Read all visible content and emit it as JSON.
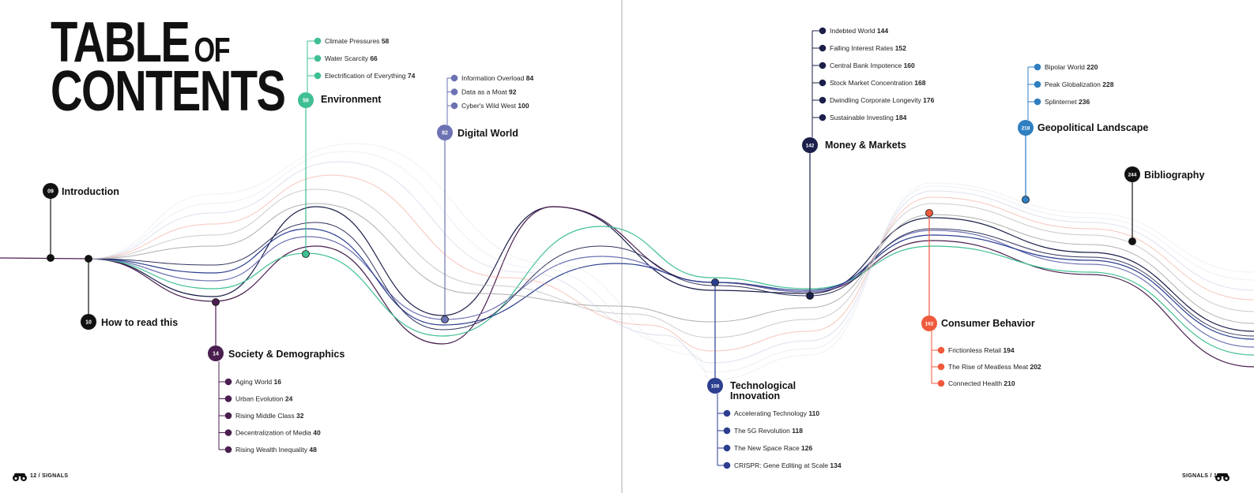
{
  "title": {
    "line1_big": "TABLE",
    "line1_small": "OF",
    "line2": "CONTENTS"
  },
  "colors": {
    "ink": "#111111",
    "society": "#4a1f4f",
    "environment": "#3fbf93",
    "digital": "#6d72b3",
    "technology": "#2b3e8f",
    "money": "#1b1f4a",
    "consumer": "#ef5a3c",
    "geopolitical": "#2f7fc1",
    "bibliography": "#111111",
    "gutter": "#d6d6d6"
  },
  "sections": [
    {
      "id": "intro",
      "number": "09",
      "label": "Introduction",
      "color": "#111111"
    },
    {
      "id": "read",
      "number": "10",
      "label": "How to read this",
      "color": "#111111"
    },
    {
      "id": "society",
      "number": "14",
      "label": "Society & Demographics",
      "color": "#4a1f4f",
      "items": [
        {
          "label": "Aging World",
          "page": "16"
        },
        {
          "label": "Urban Evolution",
          "page": "24"
        },
        {
          "label": "Rising Middle Class",
          "page": "32"
        },
        {
          "label": "Decentralization of Media",
          "page": "40"
        },
        {
          "label": "Rising Wealth Inequality",
          "page": "48"
        }
      ]
    },
    {
      "id": "environment",
      "number": "56",
      "label": "Environment",
      "color": "#3fbf93",
      "items": [
        {
          "label": "Climate Pressures",
          "page": "58"
        },
        {
          "label": "Water Scarcity",
          "page": "66"
        },
        {
          "label": "Electrification of Everything",
          "page": "74"
        }
      ]
    },
    {
      "id": "digital",
      "number": "82",
      "label": "Digital World",
      "color": "#6d72b3",
      "items": [
        {
          "label": "Information Overload",
          "page": "84"
        },
        {
          "label": "Data as a Moat",
          "page": "92"
        },
        {
          "label": "Cyber's Wild West",
          "page": "100"
        }
      ]
    },
    {
      "id": "technology",
      "number": "108",
      "label_line1": "Technological",
      "label_line2": "Innovation",
      "color": "#2b3e8f",
      "items": [
        {
          "label": "Accelerating Technology",
          "page": "110"
        },
        {
          "label": "The 5G Revolution",
          "page": "118"
        },
        {
          "label": "The New Space Race",
          "page": "126"
        },
        {
          "label": "CRISPR: Gene Editing at Scale",
          "page": "134"
        }
      ]
    },
    {
      "id": "money",
      "number": "142",
      "label": "Money & Markets",
      "color": "#1b1f4a",
      "items": [
        {
          "label": "Indebted World",
          "page": "144"
        },
        {
          "label": "Falling Interest Rates",
          "page": "152"
        },
        {
          "label": "Central Bank Impotence",
          "page": "160"
        },
        {
          "label": "Stock Market Concentration",
          "page": "168"
        },
        {
          "label": "Dwindling Corporate Longevity",
          "page": "176"
        },
        {
          "label": "Sustainable Investing",
          "page": "184"
        }
      ]
    },
    {
      "id": "consumer",
      "number": "192",
      "label": "Consumer Behavior",
      "color": "#ef5a3c",
      "items": [
        {
          "label": "Frictionless Retail",
          "page": "194"
        },
        {
          "label": "The Rise of Meatless Meat",
          "page": "202"
        },
        {
          "label": "Connected Health",
          "page": "210"
        }
      ]
    },
    {
      "id": "geopolitical",
      "number": "218",
      "label": "Geopolitical Landscape",
      "color": "#2f7fc1",
      "items": [
        {
          "label": "Bipolar World",
          "page": "220"
        },
        {
          "label": "Peak Globalization",
          "page": "228"
        },
        {
          "label": "Splinternet",
          "page": "236"
        }
      ]
    },
    {
      "id": "bibliography",
      "number": "244",
      "label": "Bibliography",
      "color": "#111111"
    }
  ],
  "footer": {
    "left": "12  /  SIGNALS",
    "right": "SIGNALS  /  13"
  }
}
